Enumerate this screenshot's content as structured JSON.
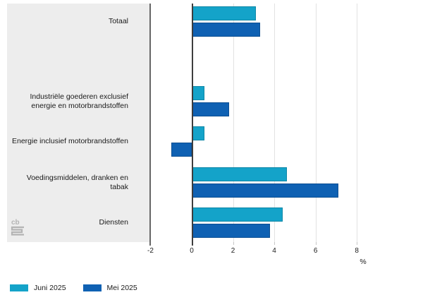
{
  "chart_data": {
    "type": "bar",
    "orientation": "horizontal",
    "title": "",
    "categories": [
      "Totaal",
      "Industriële goederen exclusief\nenergie en motorbrandstoffen",
      "Energie inclusief motorbrandstoffen",
      "Voedingsmiddelen, dranken en tabak",
      "Diensten"
    ],
    "series": [
      {
        "name": "Juni 2025",
        "color": "#14a3c9",
        "border_color": "#0e87a7",
        "values": [
          3.1,
          0.6,
          0.6,
          4.6,
          4.4
        ]
      },
      {
        "name": "Mei 2025",
        "color": "#0f61b3",
        "border_color": "#0c4f93",
        "values": [
          3.3,
          1.8,
          -1.0,
          7.1,
          3.8
        ]
      }
    ],
    "x_ticks": [
      -2,
      0,
      2,
      4,
      6,
      8
    ],
    "xlim": [
      -2,
      10
    ],
    "xlabel": "%",
    "grid": "vertical",
    "legend_position": "bottom-left"
  },
  "legend": [
    {
      "label": "Juni 2025",
      "color": "#14a3c9"
    },
    {
      "label": "Mei 2025",
      "color": "#0f61b3"
    }
  ],
  "logo": {
    "text": "cbs"
  },
  "colors": {
    "label_panel": "#ededed",
    "axis_line": "#666666",
    "zero_line": "#3d3d3d",
    "gridline": "#e2e2e2",
    "text": "#1a1a1a",
    "logo": "#b4b4b4"
  }
}
